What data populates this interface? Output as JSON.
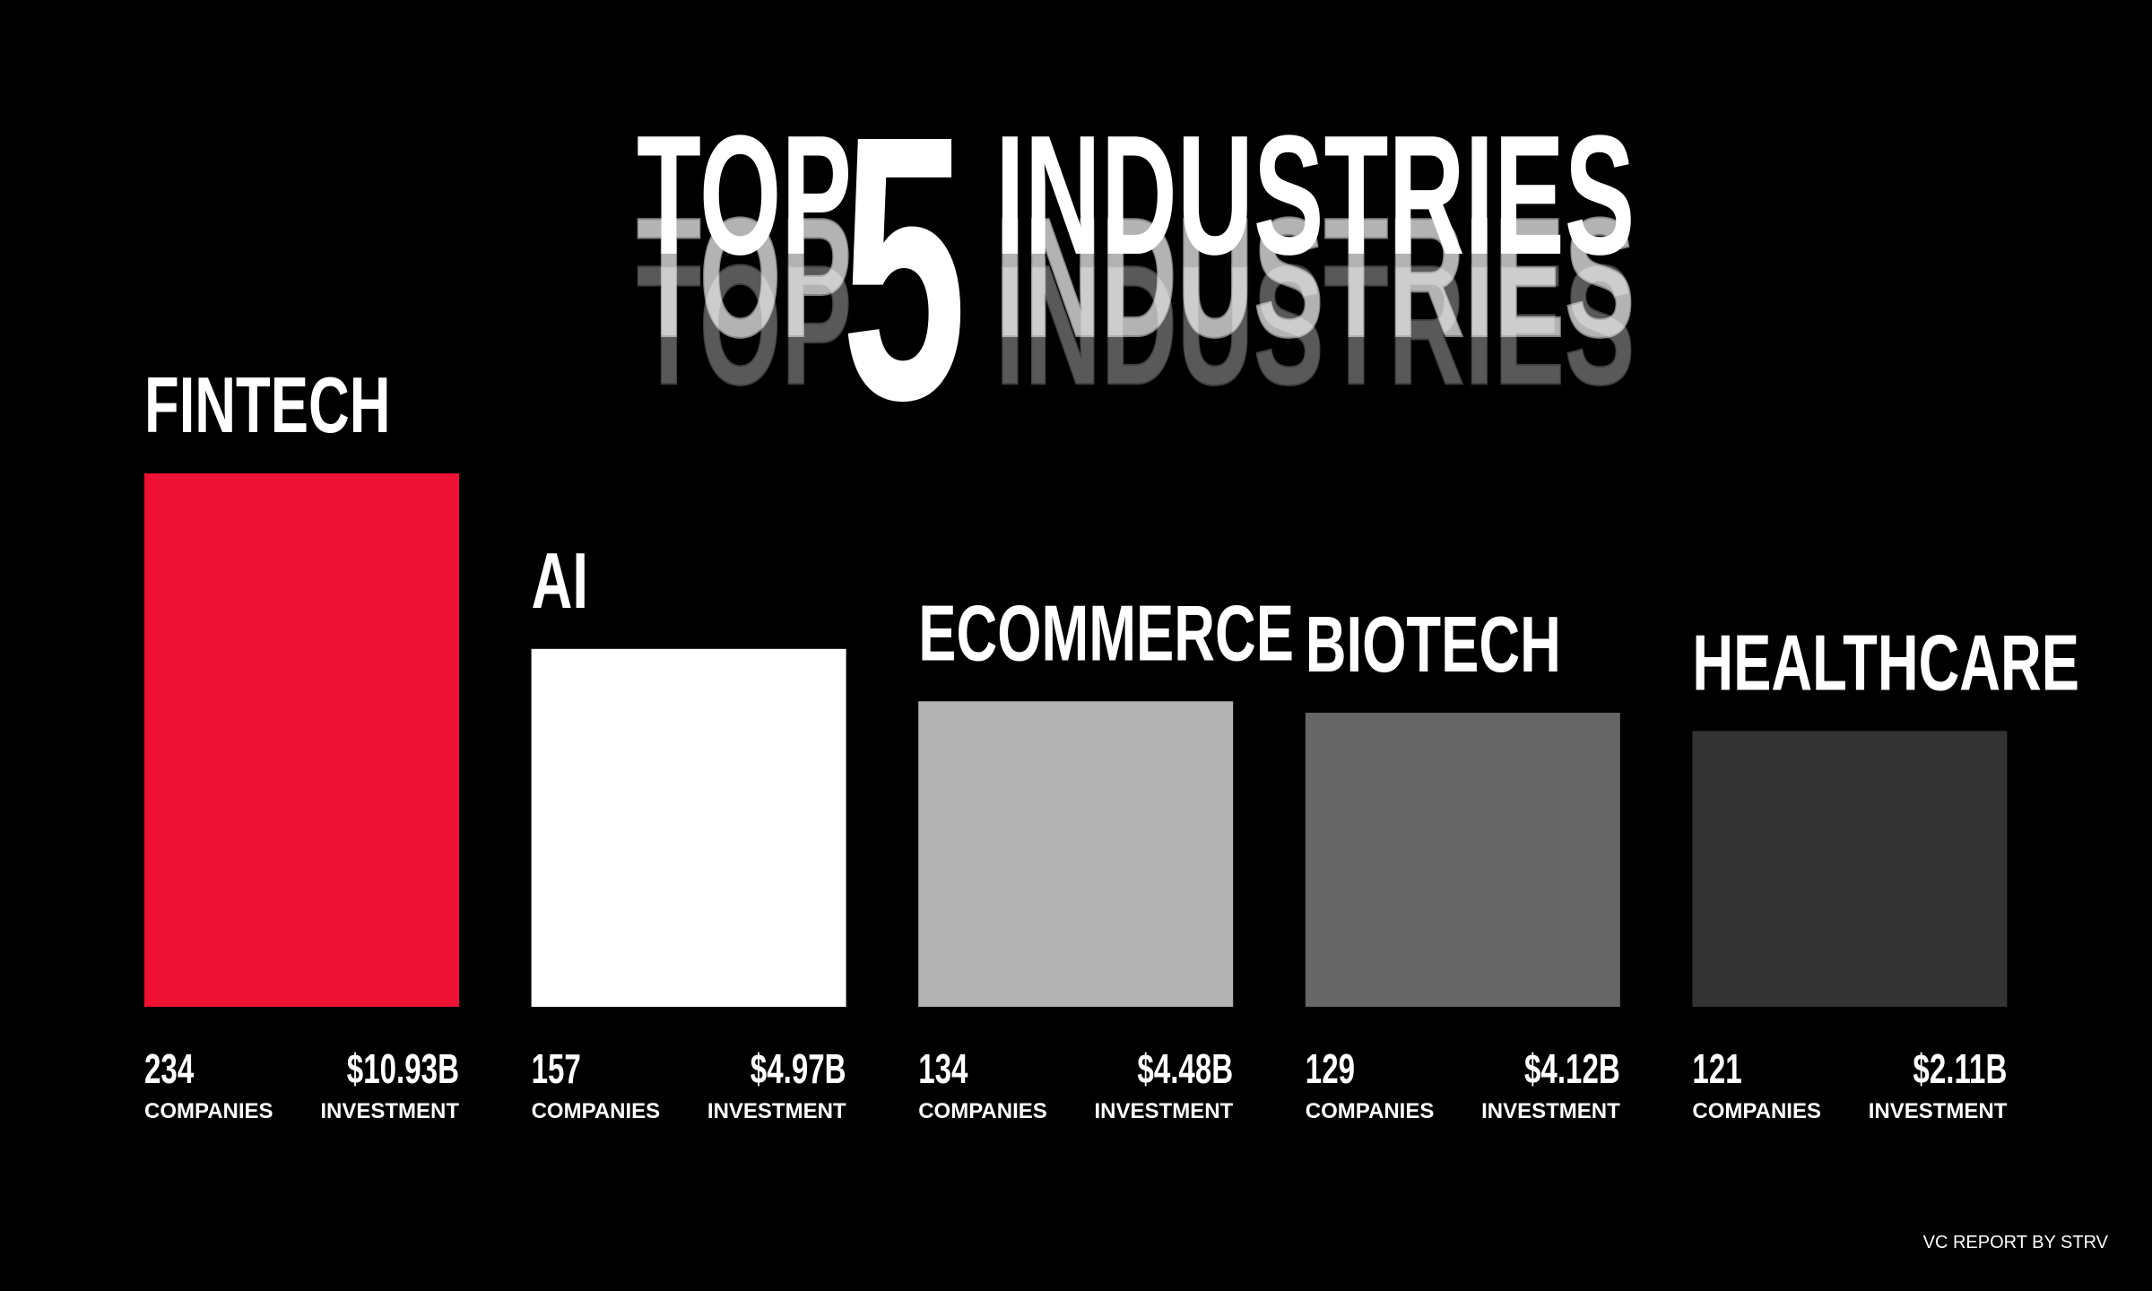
{
  "chart_data": {
    "type": "bar",
    "title": [
      "TOP",
      "5",
      "INDUSTRIES"
    ],
    "categories": [
      "FINTECH",
      "AI",
      "ECOMMERCE",
      "BIOTECH",
      "HEALTHCARE"
    ],
    "series": [
      {
        "name": "COMPANIES",
        "colors": [
          "#ee1133",
          "#ffffff",
          "#b3b3b3",
          "#666666",
          "#333333"
        ],
        "values": [
          234,
          157,
          134,
          129,
          121
        ]
      },
      {
        "name": "INVESTMENT",
        "values": [
          10930000000,
          4970000000,
          4480000000,
          4120000000,
          2110000000
        ],
        "value_labels": [
          "$10.93B",
          "$4.97B",
          "$4.48B",
          "$4.12B",
          "$2.11B"
        ]
      }
    ],
    "footer": "VC REPORT BY STRV"
  }
}
